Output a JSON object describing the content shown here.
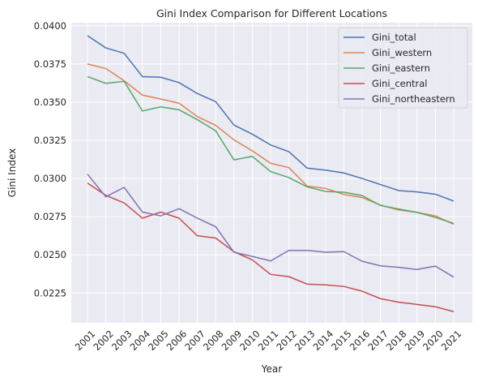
{
  "chart_data": {
    "type": "line",
    "title": "Gini Index Comparison for Different Locations",
    "xlabel": "Year",
    "ylabel": "Gini Index",
    "x": [
      "2001",
      "2002",
      "2003",
      "2004",
      "2005",
      "2006",
      "2007",
      "2008",
      "2009",
      "2010",
      "2011",
      "2012",
      "2013",
      "2014",
      "2015",
      "2016",
      "2017",
      "2018",
      "2019",
      "2020",
      "2021"
    ],
    "ylim": [
      0.02055,
      0.0402
    ],
    "yticks": [
      "0.0225",
      "0.0250",
      "0.0275",
      "0.0300",
      "0.0325",
      "0.0350",
      "0.0375",
      "0.0400"
    ],
    "grid": true,
    "legend_position": "top-right",
    "series": [
      {
        "name": "Gini_total",
        "color": "#4c72b0",
        "values": [
          0.03935,
          0.03855,
          0.0382,
          0.03667,
          0.03663,
          0.03628,
          0.03556,
          0.03503,
          0.0335,
          0.0329,
          0.0322,
          0.03175,
          0.03068,
          0.03055,
          0.03036,
          0.03,
          0.0296,
          0.02921,
          0.02912,
          0.02897,
          0.02852
        ]
      },
      {
        "name": "Gini_western",
        "color": "#dd8452",
        "values": [
          0.0375,
          0.0372,
          0.0364,
          0.03546,
          0.0352,
          0.03493,
          0.03405,
          0.03348,
          0.03253,
          0.03181,
          0.031,
          0.03071,
          0.0295,
          0.02935,
          0.02896,
          0.02875,
          0.02826,
          0.02794,
          0.02778,
          0.02755,
          0.027
        ]
      },
      {
        "name": "Gini_eastern",
        "color": "#55a868",
        "values": [
          0.03667,
          0.03623,
          0.03636,
          0.03442,
          0.03469,
          0.0345,
          0.03385,
          0.03312,
          0.03122,
          0.03145,
          0.03045,
          0.03006,
          0.02945,
          0.02915,
          0.0291,
          0.02888,
          0.02823,
          0.028,
          0.02778,
          0.02745,
          0.02706
        ]
      },
      {
        "name": "Gini_central",
        "color": "#c44e52",
        "values": [
          0.0297,
          0.0289,
          0.0284,
          0.0274,
          0.0278,
          0.0274,
          0.02625,
          0.0261,
          0.0252,
          0.02467,
          0.02372,
          0.02357,
          0.02308,
          0.02303,
          0.02293,
          0.02262,
          0.02213,
          0.0219,
          0.02175,
          0.0216,
          0.02128
        ]
      },
      {
        "name": "Gini_northeastern",
        "color": "#8172b3",
        "values": [
          0.03028,
          0.0288,
          0.02942,
          0.0278,
          0.02755,
          0.02802,
          0.0274,
          0.02684,
          0.02517,
          0.0249,
          0.0246,
          0.02529,
          0.02529,
          0.02517,
          0.02521,
          0.02458,
          0.02428,
          0.02418,
          0.02404,
          0.02426,
          0.02354
        ]
      }
    ]
  }
}
